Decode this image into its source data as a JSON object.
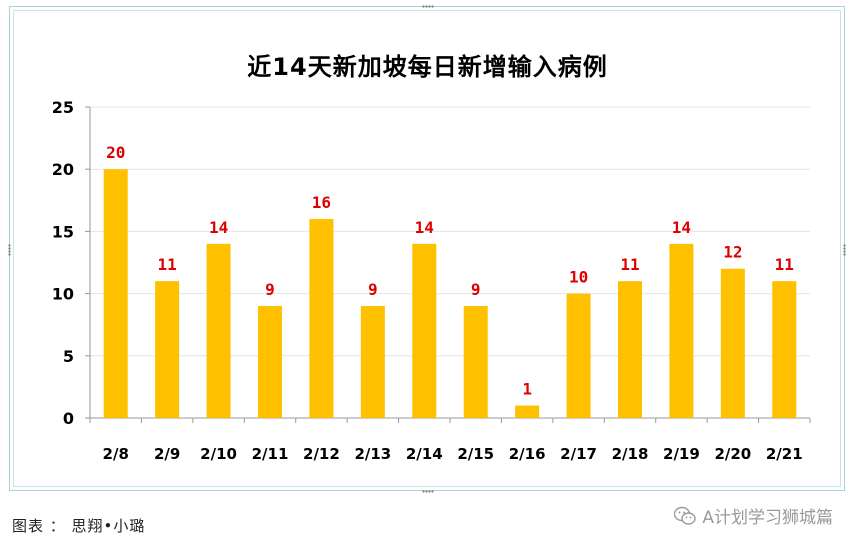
{
  "chart_data": {
    "type": "bar",
    "title": "近14天新加坡每日新增输入病例",
    "categories": [
      "2/8",
      "2/9",
      "2/10",
      "2/11",
      "2/12",
      "2/13",
      "2/14",
      "2/15",
      "2/16",
      "2/17",
      "2/18",
      "2/19",
      "2/20",
      "2/21"
    ],
    "values": [
      20,
      11,
      14,
      9,
      16,
      9,
      14,
      9,
      1,
      10,
      11,
      14,
      12,
      11
    ],
    "ylim": [
      0,
      25
    ],
    "yticks": [
      0,
      5,
      10,
      15,
      20,
      25
    ],
    "grid": true,
    "bar_color": "#FFC000",
    "label_color": "#E00000",
    "xlabel": "",
    "ylabel": ""
  },
  "footer": {
    "caption": "图表 ： 思翔•小璐",
    "watermark": "A计划学习狮城篇",
    "watermark_icon": "wechat-icon"
  }
}
